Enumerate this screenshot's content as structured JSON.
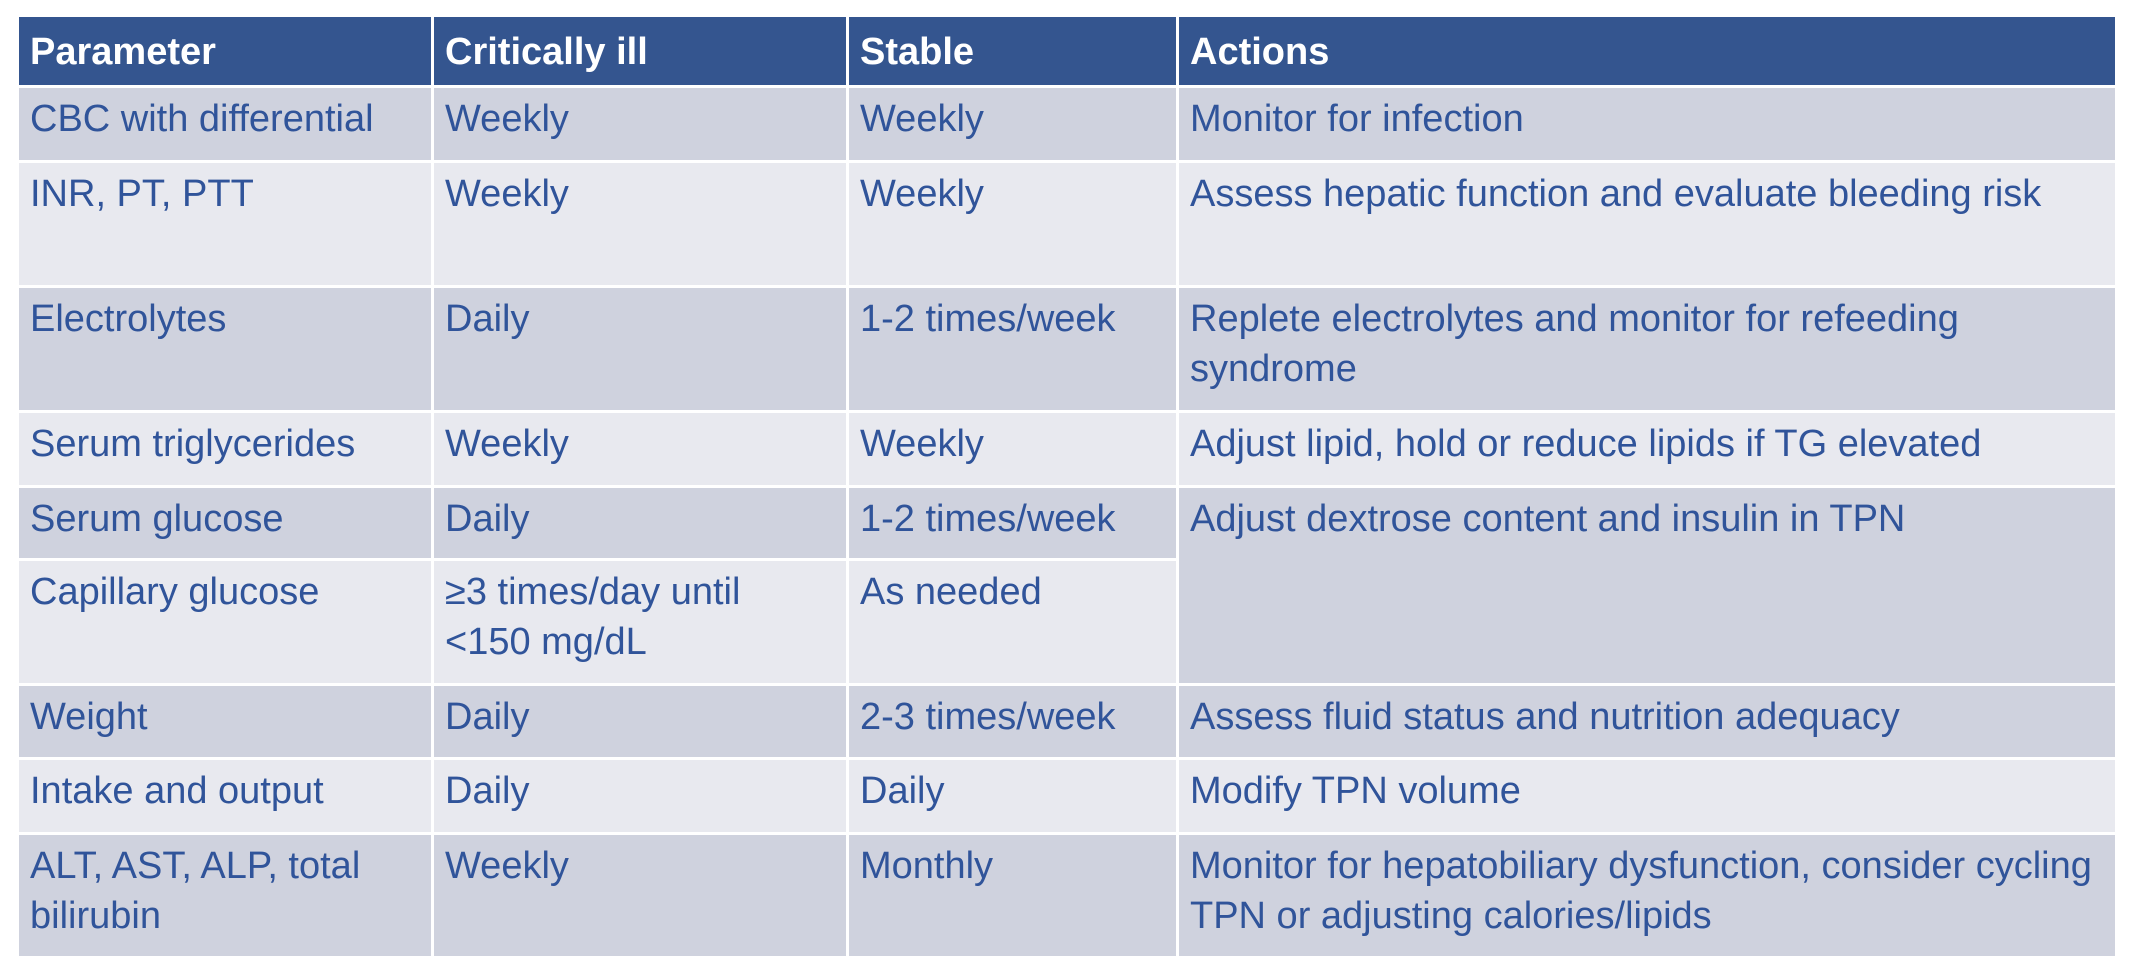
{
  "table": {
    "header": [
      "Parameter",
      "Critically ill",
      "Stable",
      "Actions"
    ],
    "rows": [
      [
        "CBC with differential",
        "Weekly",
        "Weekly",
        "Monitor for infection"
      ],
      [
        "INR, PT, PTT",
        "Weekly",
        "Weekly",
        "Assess hepatic function and evaluate bleeding risk"
      ],
      [
        "Electrolytes",
        "Daily",
        "1-2 times/week",
        "Replete electrolytes and monitor for refeeding syndrome"
      ],
      [
        "Serum triglycerides",
        "Weekly",
        "Weekly",
        "Adjust lipid, hold or reduce lipids if TG elevated"
      ],
      [
        "Serum glucose",
        "Daily",
        "1-2 times/week",
        "Adjust dextrose content and insulin in TPN"
      ],
      [
        "Capillary glucose",
        "≥3 times/day until <150 mg/dL",
        "As needed"
      ],
      [
        "Weight",
        "Daily",
        "2-3 times/week",
        "Assess fluid status and nutrition adequacy"
      ],
      [
        "Intake and output",
        "Daily",
        "Daily",
        "Modify TPN volume"
      ],
      [
        "ALT, AST, ALP, total bilirubin",
        "Weekly",
        "Monthly",
        "Monitor for hepatobiliary dysfunction, consider cycling TPN or adjusting calories/lipids"
      ]
    ]
  }
}
